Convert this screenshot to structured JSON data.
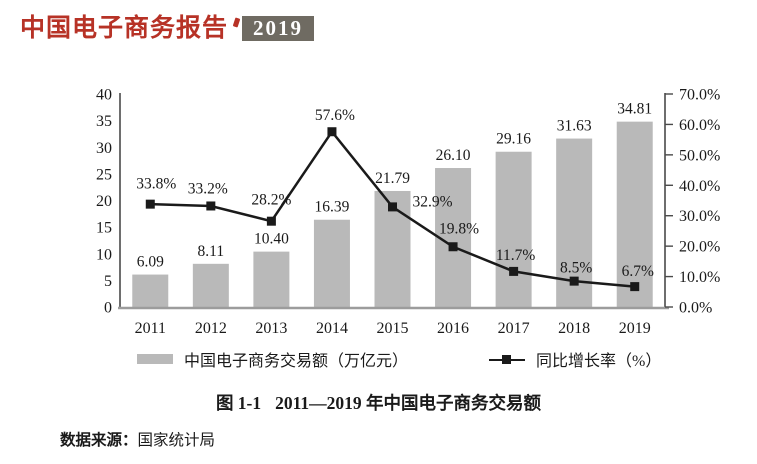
{
  "header": {
    "title": "中国电子商务报告",
    "year_badge": "2019",
    "title_color": "#b73226",
    "badge_bg": "#6f6b62",
    "badge_text_color": "#ffffff"
  },
  "chart_data": {
    "type": "bar",
    "subtype": "bar+line combo, dual axis",
    "categories": [
      "2011",
      "2012",
      "2013",
      "2014",
      "2015",
      "2016",
      "2017",
      "2018",
      "2019"
    ],
    "series": [
      {
        "name": "中国电子商务交易额（万亿元）",
        "chart_type": "bar",
        "axis": "left",
        "values": [
          6.09,
          8.11,
          10.4,
          16.39,
          21.79,
          26.1,
          29.16,
          31.63,
          34.81
        ],
        "labels": [
          "6.09",
          "8.11",
          "10.40",
          "16.39",
          "21.79",
          "26.10",
          "29.16",
          "31.63",
          "34.81"
        ],
        "color": "#b9b9b9"
      },
      {
        "name": "同比增长率（%）",
        "chart_type": "line",
        "axis": "right",
        "values": [
          33.8,
          33.2,
          28.2,
          57.6,
          32.9,
          19.8,
          11.7,
          8.5,
          6.7
        ],
        "labels": [
          "33.8%",
          "33.2%",
          "28.2%",
          "57.6%",
          "32.9%",
          "19.8%",
          "11.7%",
          "8.5%",
          "6.7%"
        ],
        "color": "#1a1a1a"
      }
    ],
    "left_axis": {
      "min": 0,
      "max": 40,
      "step": 5,
      "tick_labels": [
        "0",
        "5",
        "10",
        "15",
        "20",
        "25",
        "30",
        "35",
        "40"
      ]
    },
    "right_axis": {
      "min": 0,
      "max": 70,
      "step": 10,
      "tick_labels": [
        "0.0%",
        "10.0%",
        "20.0%",
        "30.0%",
        "40.0%",
        "50.0%",
        "60.0%",
        "70.0%"
      ]
    },
    "grid": "off",
    "legend_position": "bottom",
    "title": "",
    "xlabel": "",
    "ylabel": ""
  },
  "caption": {
    "number": "图 1-1",
    "text": "2011—2019 年中国电子商务交易额"
  },
  "footer": {
    "label": "数据来源：",
    "value": "国家统计局"
  }
}
